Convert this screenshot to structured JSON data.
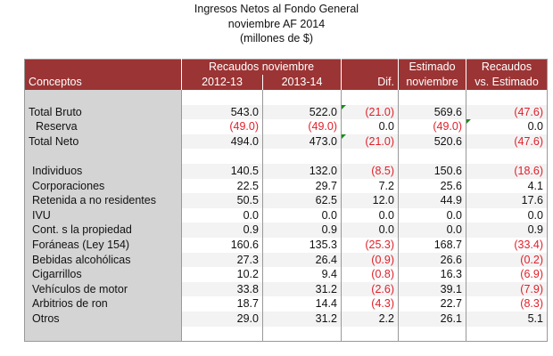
{
  "title": {
    "line1": "Ingresos Netos al Fondo General",
    "line2": "noviembre AF 2014",
    "line3": "(millones de $)"
  },
  "header": {
    "group": "Recaudos noviembre",
    "conceptos": "Conceptos",
    "y1": "2012-13",
    "y2": "2013-14",
    "dif": "Dif.",
    "est1": "Estimado",
    "est2": "noviembre",
    "rec1": "Recaudos",
    "rec2": "vs. Estimado"
  },
  "rows": [
    {
      "label": "Total Bruto",
      "v": [
        "543.0",
        "522.0",
        "(21.0)",
        "569.6",
        "(47.6)"
      ]
    },
    {
      "label": "Reserva",
      "v": [
        "(49.0)",
        "(49.0)",
        "0.0",
        "(49.0)",
        "0.0"
      ]
    },
    {
      "label": "Total Neto",
      "v": [
        "494.0",
        "473.0",
        "(21.0)",
        "520.6",
        "(47.6)"
      ]
    },
    {
      "label": "Individuos",
      "v": [
        "140.5",
        "132.0",
        "(8.5)",
        "150.6",
        "(18.6)"
      ]
    },
    {
      "label": "Corporaciones",
      "v": [
        "22.5",
        "29.7",
        "7.2",
        "25.6",
        "4.1"
      ]
    },
    {
      "label": "Retenida a no residentes",
      "v": [
        "50.5",
        "62.5",
        "12.0",
        "44.9",
        "17.6"
      ]
    },
    {
      "label": "IVU",
      "v": [
        "0.0",
        "0.0",
        "0.0",
        "0.0",
        "0.0"
      ]
    },
    {
      "label": "Cont. s la propiedad",
      "v": [
        "0.9",
        "0.9",
        "0.0",
        "0.0",
        "0.9"
      ]
    },
    {
      "label": "Foráneas (Ley 154)",
      "v": [
        "160.6",
        "135.3",
        "(25.3)",
        "168.7",
        "(33.4)"
      ]
    },
    {
      "label": "Bebidas alcohólicas",
      "v": [
        "27.3",
        "26.4",
        "(0.9)",
        "26.6",
        "(0.2)"
      ]
    },
    {
      "label": "Cigarrillos",
      "v": [
        "10.2",
        "9.4",
        "(0.8)",
        "16.3",
        "(6.9)"
      ]
    },
    {
      "label": "Vehículos de motor",
      "v": [
        "33.8",
        "31.2",
        "(2.6)",
        "39.1",
        "(7.9)"
      ]
    },
    {
      "label": "Arbitrios de ron",
      "v": [
        "18.7",
        "14.4",
        "(4.3)",
        "22.7",
        "(8.3)"
      ]
    },
    {
      "label": "Otros",
      "v": [
        "29.0",
        "31.2",
        "2.2",
        "26.1",
        "5.1"
      ]
    }
  ],
  "colors": {
    "header": "#9b3434",
    "negative": "#e0202a"
  }
}
